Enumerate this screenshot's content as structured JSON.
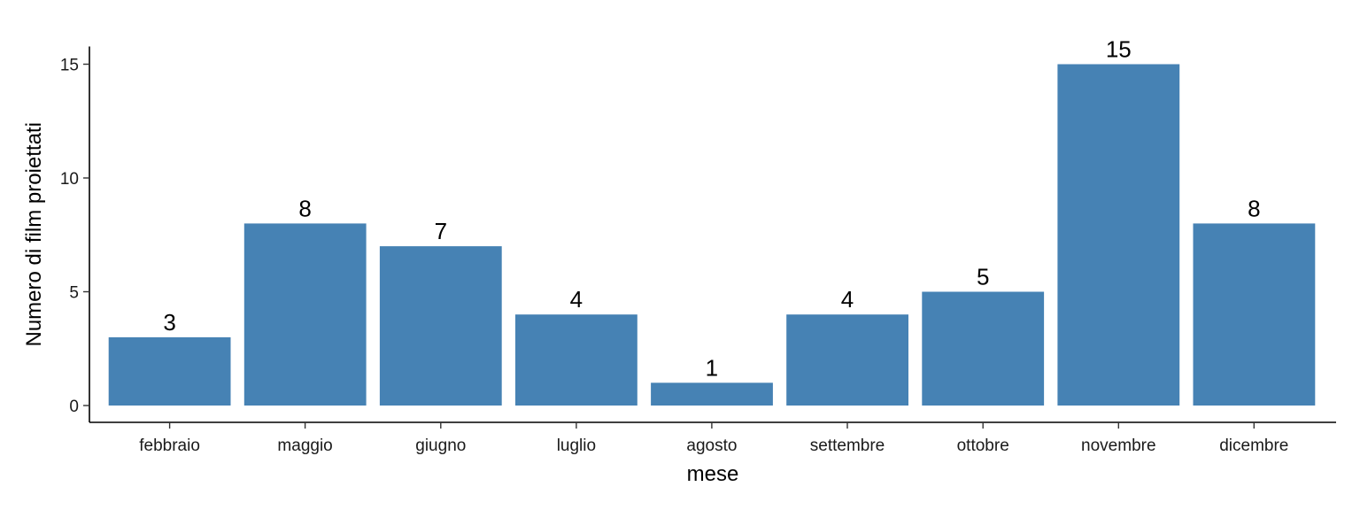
{
  "chart_data": {
    "type": "bar",
    "categories": [
      "febbraio",
      "maggio",
      "giugno",
      "luglio",
      "agosto",
      "settembre",
      "ottobre",
      "novembre",
      "dicembre"
    ],
    "values": [
      3,
      8,
      7,
      4,
      1,
      4,
      5,
      15,
      8
    ],
    "xlabel": "mese",
    "ylabel": "Numero di film proiettati",
    "ylim": [
      0,
      15
    ],
    "yticks": [
      0,
      5,
      10,
      15
    ],
    "data_labels": true,
    "grid": false,
    "bar_color": "#4682B4",
    "axis_color": "#000000"
  }
}
